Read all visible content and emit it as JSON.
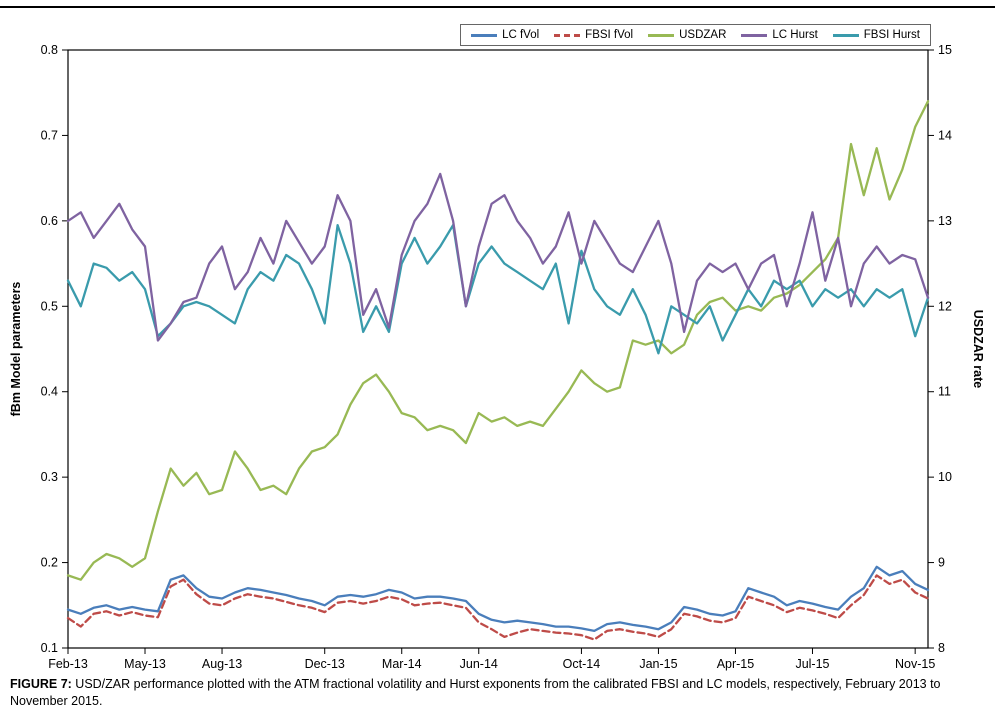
{
  "figure": {
    "caption_label": "FIGURE 7:",
    "caption_text": " USD/ZAR performance plotted with the ATM fractional volatility and Hurst exponents from the calibrated FBSI and LC models, respectively, February 2013 to November 2015."
  },
  "chart_data": {
    "type": "line",
    "title": "",
    "xlabel": "",
    "ylabel_left": "fBm Model parameters",
    "ylabel_right": "USDZAR rate",
    "ylim_left": [
      0.1,
      0.8
    ],
    "ylim_right": [
      8,
      15
    ],
    "y_ticks_left": [
      0.1,
      0.2,
      0.3,
      0.4,
      0.5,
      0.6,
      0.7,
      0.8
    ],
    "y_ticks_right": [
      8,
      9,
      10,
      11,
      12,
      13,
      14,
      15
    ],
    "x_tick_labels": [
      "Feb-13",
      "May-13",
      "Aug-13",
      "Dec-13",
      "Mar-14",
      "Jun-14",
      "Oct-14",
      "Jan-15",
      "Apr-15",
      "Jul-15",
      "Nov-15"
    ],
    "x_tick_months": [
      0,
      3,
      6,
      10,
      13,
      16,
      20,
      23,
      26,
      29,
      33
    ],
    "x_total_months": 33.5,
    "sample_interval_months": 0.5,
    "grid": false,
    "legend_position": "top-right",
    "series": [
      {
        "name": "LC fVol",
        "axis": "left",
        "color": "#4a7ebb",
        "dash": "solid",
        "values": [
          0.145,
          0.14,
          0.147,
          0.15,
          0.145,
          0.148,
          0.145,
          0.143,
          0.18,
          0.185,
          0.17,
          0.16,
          0.158,
          0.165,
          0.17,
          0.168,
          0.165,
          0.162,
          0.158,
          0.155,
          0.15,
          0.16,
          0.162,
          0.16,
          0.163,
          0.168,
          0.165,
          0.158,
          0.16,
          0.16,
          0.158,
          0.155,
          0.14,
          0.133,
          0.13,
          0.132,
          0.13,
          0.128,
          0.125,
          0.125,
          0.123,
          0.12,
          0.128,
          0.13,
          0.127,
          0.125,
          0.122,
          0.13,
          0.148,
          0.145,
          0.14,
          0.138,
          0.143,
          0.17,
          0.165,
          0.16,
          0.15,
          0.155,
          0.152,
          0.148,
          0.145,
          0.16,
          0.17,
          0.195,
          0.185,
          0.19,
          0.175,
          0.168
        ]
      },
      {
        "name": "FBSI fVol",
        "axis": "left",
        "color": "#be4b48",
        "dash": "dashed",
        "values": [
          0.135,
          0.125,
          0.14,
          0.143,
          0.138,
          0.142,
          0.138,
          0.136,
          0.172,
          0.18,
          0.163,
          0.152,
          0.15,
          0.158,
          0.163,
          0.16,
          0.158,
          0.154,
          0.15,
          0.147,
          0.142,
          0.153,
          0.155,
          0.152,
          0.155,
          0.16,
          0.157,
          0.15,
          0.152,
          0.153,
          0.15,
          0.147,
          0.13,
          0.122,
          0.113,
          0.118,
          0.122,
          0.12,
          0.118,
          0.117,
          0.115,
          0.11,
          0.12,
          0.122,
          0.119,
          0.117,
          0.113,
          0.122,
          0.14,
          0.137,
          0.132,
          0.13,
          0.135,
          0.16,
          0.155,
          0.15,
          0.142,
          0.147,
          0.144,
          0.14,
          0.135,
          0.15,
          0.162,
          0.185,
          0.175,
          0.18,
          0.165,
          0.158
        ]
      },
      {
        "name": "USDZAR",
        "axis": "right",
        "color": "#98b954",
        "dash": "solid",
        "values": [
          8.85,
          8.8,
          9.0,
          9.1,
          9.05,
          8.95,
          9.05,
          9.6,
          10.1,
          9.9,
          10.05,
          9.8,
          9.85,
          10.3,
          10.1,
          9.85,
          9.9,
          9.8,
          10.1,
          10.3,
          10.35,
          10.5,
          10.85,
          11.1,
          11.2,
          11.0,
          10.75,
          10.7,
          10.55,
          10.6,
          10.55,
          10.4,
          10.75,
          10.65,
          10.7,
          10.6,
          10.65,
          10.6,
          10.8,
          11.0,
          11.25,
          11.1,
          11.0,
          11.05,
          11.6,
          11.55,
          11.6,
          11.45,
          11.55,
          11.9,
          12.05,
          12.1,
          11.95,
          12.0,
          11.95,
          12.1,
          12.15,
          12.25,
          12.4,
          12.55,
          12.8,
          13.9,
          13.3,
          13.85,
          13.25,
          13.6,
          14.1,
          14.4
        ]
      },
      {
        "name": "LC Hurst",
        "axis": "left",
        "color": "#7f63a1",
        "dash": "solid",
        "values": [
          0.6,
          0.61,
          0.58,
          0.6,
          0.62,
          0.59,
          0.57,
          0.46,
          0.48,
          0.505,
          0.51,
          0.55,
          0.57,
          0.52,
          0.54,
          0.58,
          0.55,
          0.6,
          0.575,
          0.55,
          0.57,
          0.63,
          0.6,
          0.49,
          0.52,
          0.475,
          0.56,
          0.6,
          0.62,
          0.655,
          0.6,
          0.5,
          0.57,
          0.62,
          0.63,
          0.6,
          0.58,
          0.55,
          0.57,
          0.61,
          0.55,
          0.6,
          0.575,
          0.55,
          0.54,
          0.57,
          0.6,
          0.55,
          0.47,
          0.53,
          0.55,
          0.54,
          0.55,
          0.52,
          0.55,
          0.56,
          0.5,
          0.55,
          0.61,
          0.53,
          0.58,
          0.5,
          0.55,
          0.57,
          0.55,
          0.56,
          0.555,
          0.51
        ]
      },
      {
        "name": "FBSI Hurst",
        "axis": "left",
        "color": "#3a9bac",
        "dash": "solid",
        "values": [
          0.53,
          0.5,
          0.55,
          0.545,
          0.53,
          0.54,
          0.52,
          0.465,
          0.48,
          0.5,
          0.505,
          0.5,
          0.49,
          0.48,
          0.52,
          0.54,
          0.53,
          0.56,
          0.55,
          0.52,
          0.48,
          0.595,
          0.55,
          0.47,
          0.5,
          0.47,
          0.55,
          0.58,
          0.55,
          0.57,
          0.595,
          0.5,
          0.55,
          0.57,
          0.55,
          0.54,
          0.53,
          0.52,
          0.55,
          0.48,
          0.565,
          0.52,
          0.5,
          0.49,
          0.52,
          0.49,
          0.445,
          0.5,
          0.49,
          0.48,
          0.5,
          0.46,
          0.49,
          0.52,
          0.5,
          0.53,
          0.52,
          0.53,
          0.5,
          0.52,
          0.51,
          0.52,
          0.5,
          0.52,
          0.51,
          0.52,
          0.465,
          0.51
        ]
      }
    ]
  }
}
